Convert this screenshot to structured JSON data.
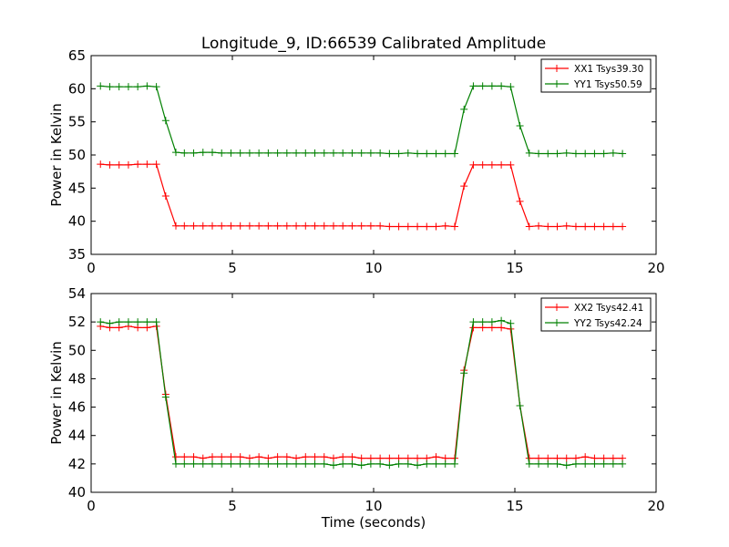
{
  "figure": {
    "title": "Longitude_9, ID:66539 Calibrated Amplitude"
  },
  "colors": {
    "XX": "#ff0000",
    "YY": "#008000"
  },
  "chart_data": [
    {
      "type": "line",
      "ylabel": "Power in Kelvin",
      "xlabel": "",
      "xlim": [
        0,
        20
      ],
      "ylim": [
        35,
        65
      ],
      "xticks": [
        0,
        5,
        10,
        15,
        20
      ],
      "yticks": [
        35,
        40,
        45,
        50,
        55,
        60,
        65
      ],
      "legend_position": "top-right",
      "grid": false,
      "x": [
        0.33,
        0.66,
        0.99,
        1.32,
        1.65,
        1.98,
        2.31,
        2.64,
        3.0,
        3.3,
        3.63,
        3.96,
        4.29,
        4.62,
        4.95,
        5.28,
        5.61,
        5.94,
        6.27,
        6.6,
        6.93,
        7.26,
        7.59,
        7.92,
        8.25,
        8.58,
        8.91,
        9.24,
        9.57,
        9.9,
        10.23,
        10.56,
        10.89,
        11.22,
        11.55,
        11.88,
        12.21,
        12.54,
        12.87,
        13.2,
        13.53,
        13.86,
        14.19,
        14.52,
        14.85,
        15.18,
        15.51,
        15.84,
        16.17,
        16.5,
        16.83,
        17.16,
        17.49,
        17.82,
        18.15,
        18.48,
        18.81
      ],
      "series": [
        {
          "name": "XX1 Tsys39.30",
          "color": "#ff0000",
          "values": [
            48.6,
            48.5,
            48.5,
            48.5,
            48.6,
            48.6,
            48.6,
            43.8,
            39.3,
            39.3,
            39.3,
            39.3,
            39.3,
            39.3,
            39.3,
            39.3,
            39.3,
            39.3,
            39.3,
            39.3,
            39.3,
            39.3,
            39.3,
            39.3,
            39.3,
            39.3,
            39.3,
            39.3,
            39.3,
            39.3,
            39.3,
            39.2,
            39.2,
            39.2,
            39.2,
            39.2,
            39.2,
            39.3,
            39.2,
            45.3,
            48.5,
            48.5,
            48.5,
            48.5,
            48.5,
            43.0,
            39.2,
            39.3,
            39.2,
            39.2,
            39.3,
            39.2,
            39.2,
            39.2,
            39.2,
            39.2,
            39.2
          ]
        },
        {
          "name": "YY1 Tsys50.59",
          "color": "#008000",
          "values": [
            60.4,
            60.3,
            60.3,
            60.3,
            60.3,
            60.4,
            60.3,
            55.2,
            50.4,
            50.3,
            50.3,
            50.4,
            50.4,
            50.3,
            50.3,
            50.3,
            50.3,
            50.3,
            50.3,
            50.3,
            50.3,
            50.3,
            50.3,
            50.3,
            50.3,
            50.3,
            50.3,
            50.3,
            50.3,
            50.3,
            50.3,
            50.2,
            50.2,
            50.3,
            50.2,
            50.2,
            50.2,
            50.2,
            50.2,
            56.9,
            60.4,
            60.4,
            60.4,
            60.4,
            60.3,
            54.4,
            50.3,
            50.2,
            50.2,
            50.2,
            50.3,
            50.2,
            50.2,
            50.2,
            50.2,
            50.3,
            50.2
          ]
        }
      ]
    },
    {
      "type": "line",
      "ylabel": "Power in Kelvin",
      "xlabel": "Time (seconds)",
      "xlim": [
        0,
        20
      ],
      "ylim": [
        40,
        54
      ],
      "xticks": [
        0,
        5,
        10,
        15,
        20
      ],
      "yticks": [
        40,
        42,
        44,
        46,
        48,
        50,
        52,
        54
      ],
      "legend_position": "top-right",
      "grid": false,
      "x": [
        0.33,
        0.66,
        0.99,
        1.32,
        1.65,
        1.98,
        2.31,
        2.64,
        3.0,
        3.3,
        3.63,
        3.96,
        4.29,
        4.62,
        4.95,
        5.28,
        5.61,
        5.94,
        6.27,
        6.6,
        6.93,
        7.26,
        7.59,
        7.92,
        8.25,
        8.58,
        8.91,
        9.24,
        9.57,
        9.9,
        10.23,
        10.56,
        10.89,
        11.22,
        11.55,
        11.88,
        12.21,
        12.54,
        12.87,
        13.2,
        13.53,
        13.86,
        14.19,
        14.52,
        14.85,
        15.18,
        15.51,
        15.84,
        16.17,
        16.5,
        16.83,
        17.16,
        17.49,
        17.82,
        18.15,
        18.48,
        18.81
      ],
      "series": [
        {
          "name": "XX2 Tsys42.41",
          "color": "#ff0000",
          "values": [
            51.7,
            51.6,
            51.6,
            51.7,
            51.6,
            51.6,
            51.7,
            46.9,
            42.5,
            42.5,
            42.5,
            42.4,
            42.5,
            42.5,
            42.5,
            42.5,
            42.4,
            42.5,
            42.4,
            42.5,
            42.5,
            42.4,
            42.5,
            42.5,
            42.5,
            42.4,
            42.5,
            42.5,
            42.4,
            42.4,
            42.4,
            42.4,
            42.4,
            42.4,
            42.4,
            42.4,
            42.5,
            42.4,
            42.4,
            48.6,
            51.6,
            51.6,
            51.6,
            51.6,
            51.5,
            46.1,
            42.4,
            42.4,
            42.4,
            42.4,
            42.4,
            42.4,
            42.5,
            42.4,
            42.4,
            42.4,
            42.4
          ]
        },
        {
          "name": "YY2 Tsys42.24",
          "color": "#008000",
          "values": [
            52.0,
            51.9,
            52.0,
            52.0,
            52.0,
            52.0,
            52.0,
            46.7,
            42.0,
            42.0,
            42.0,
            42.0,
            42.0,
            42.0,
            42.0,
            42.0,
            42.0,
            42.0,
            42.0,
            42.0,
            42.0,
            42.0,
            42.0,
            42.0,
            42.0,
            41.9,
            42.0,
            42.0,
            41.9,
            42.0,
            42.0,
            41.9,
            42.0,
            42.0,
            41.9,
            42.0,
            42.0,
            42.0,
            42.0,
            48.4,
            52.0,
            52.0,
            52.0,
            52.1,
            51.9,
            46.1,
            42.0,
            42.0,
            42.0,
            42.0,
            41.9,
            42.0,
            42.0,
            42.0,
            42.0,
            42.0,
            42.0
          ]
        }
      ]
    }
  ]
}
